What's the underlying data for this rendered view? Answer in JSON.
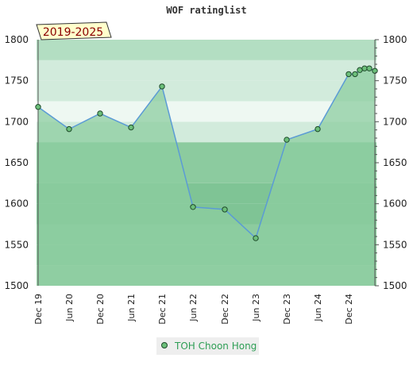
{
  "chart_data": {
    "type": "area",
    "title": "WOF ratinglist",
    "period_label": "2019-2025",
    "x": [
      "Dec 19",
      "Jun 20",
      "Dec 20",
      "Jun 21",
      "Dec 21",
      "Jun 22",
      "Dec 22",
      "Jun 23",
      "Dec 23",
      "Jun 24",
      "Dec 24",
      "",
      "",
      "",
      "",
      ""
    ],
    "x_tick_labels": [
      "Dec 19",
      "Jun 20",
      "Dec 20",
      "Jun 21",
      "Dec 21",
      "Jun 22",
      "Dec 22",
      "Jun 23",
      "Dec 23",
      "Jun 24",
      "Dec 24"
    ],
    "series": [
      {
        "name": "TOH Choon Hong",
        "values": [
          1718,
          1691,
          1710,
          1693,
          1743,
          1596,
          1593,
          1558,
          1678,
          1691,
          1758,
          1758,
          1763,
          1765,
          1765,
          1762
        ]
      }
    ],
    "ylim": [
      1500,
      1800
    ],
    "y_ticks": [
      "1500",
      "1550",
      "1600",
      "1650",
      "1700",
      "1750",
      "1800"
    ],
    "grid": true,
    "legend_position": "bottom-center",
    "colors": {
      "line": "#5b9bd5",
      "marker_fill": "#6cbf7a",
      "marker_stroke": "#1e4a2a",
      "area_fill": "#8ccda0",
      "band_palette": [
        "#97d0a6",
        "#8ccb9f",
        "#7fc495",
        "#d2ebdc",
        "#eef8f2"
      ],
      "period_bg": "#ffffcc",
      "legend_bg": "#eeeeee",
      "legend_text": "#2e9e55"
    }
  }
}
